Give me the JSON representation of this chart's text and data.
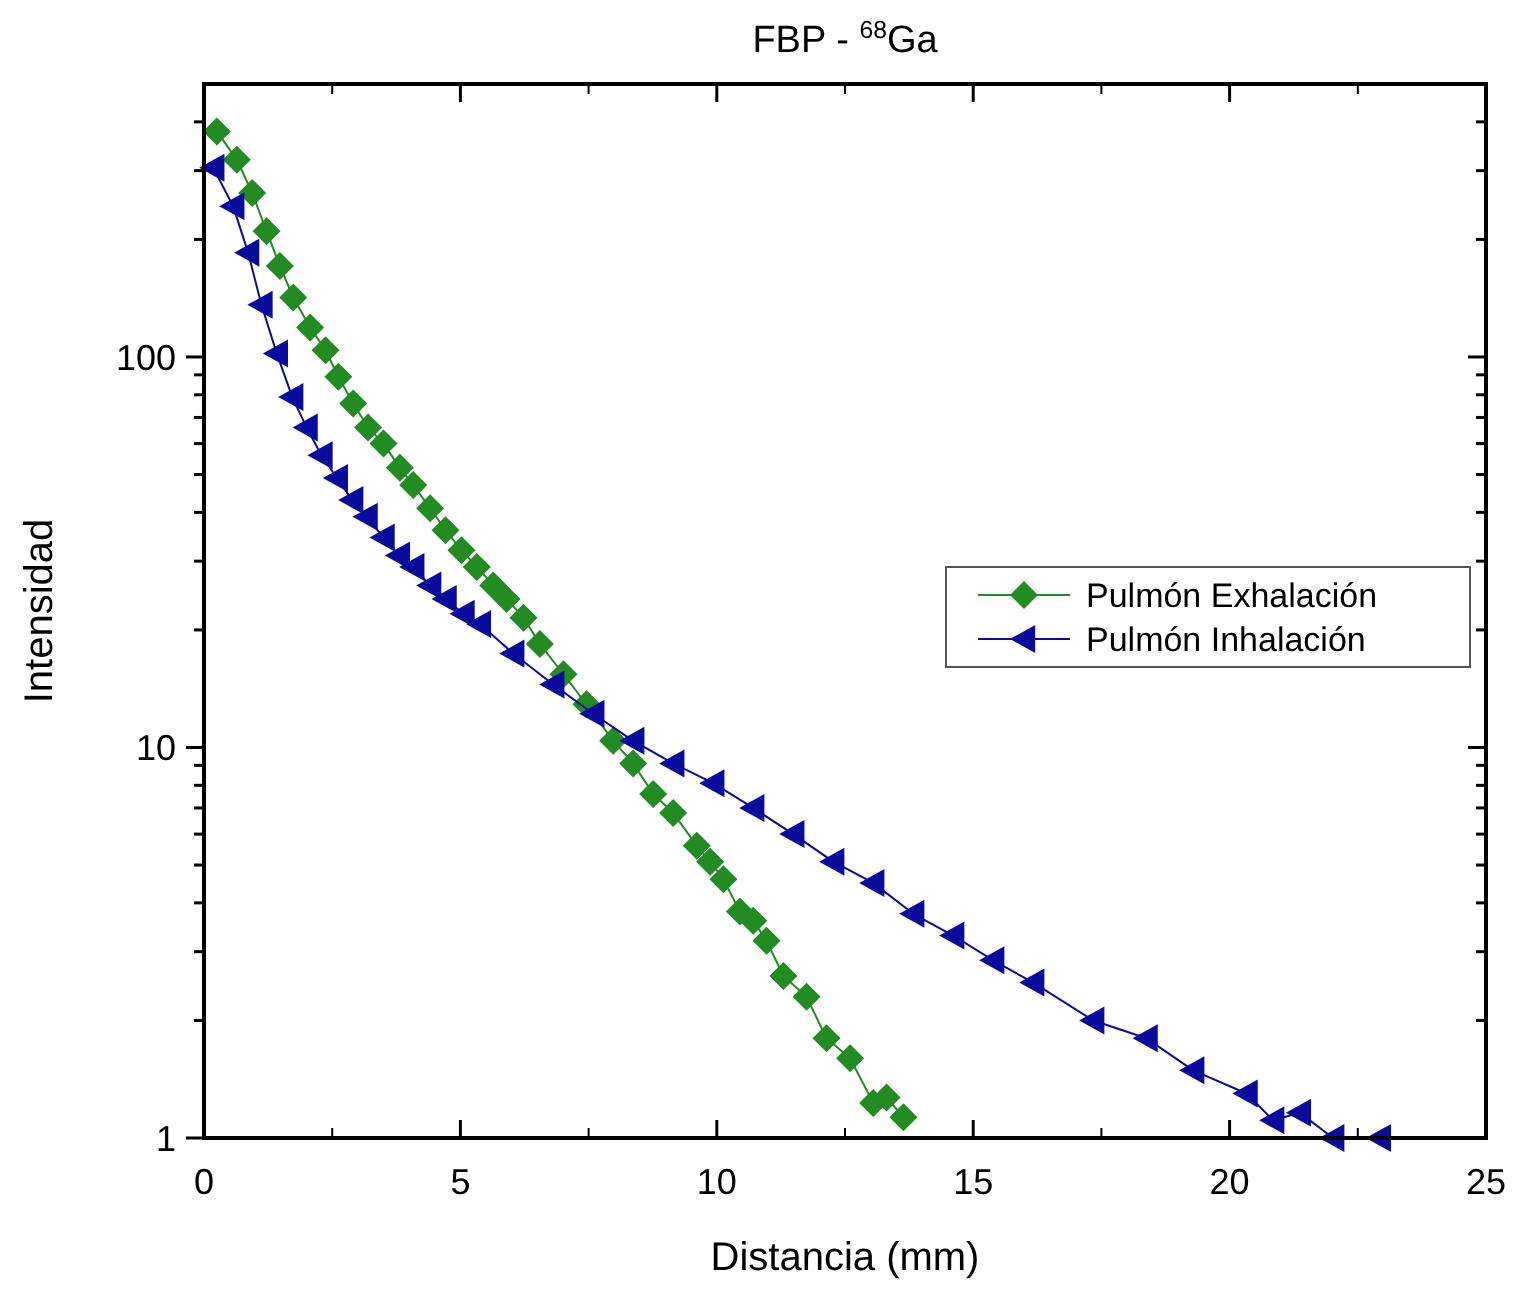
{
  "chart_data": {
    "type": "line",
    "title": "FBP - $^{68}$Ga",
    "xlabel": "Distancia (mm)",
    "ylabel": "Intensidad",
    "log": "y",
    "xlim": [
      0,
      25
    ],
    "xticks": [
      0,
      5,
      10,
      15,
      20,
      25
    ],
    "ylim": [
      1,
      500
    ],
    "yticks": [
      1,
      {
        "value": 2,
        "label": null
      },
      {
        "value": 3,
        "label": null
      },
      {
        "value": 4,
        "label": null
      },
      {
        "value": 5,
        "label": null
      },
      {
        "value": 6,
        "label": null
      },
      {
        "value": 7,
        "label": null
      },
      {
        "value": 8,
        "label": null
      },
      {
        "value": 9,
        "label": null
      },
      10,
      {
        "value": 20,
        "label": null
      },
      {
        "value": 30,
        "label": null
      },
      {
        "value": 40,
        "label": null
      },
      {
        "value": 50,
        "label": null
      },
      {
        "value": 60,
        "label": null
      },
      {
        "value": 70,
        "label": null
      },
      {
        "value": 80,
        "label": null
      },
      {
        "value": 90,
        "label": null
      },
      100,
      {
        "value": 200,
        "label": null
      },
      {
        "value": 300,
        "label": null
      },
      {
        "value": 400,
        "label": null
      }
    ],
    "legend": "right",
    "grid": false,
    "series": [
      {
        "name": "Pulmón Exhalación",
        "color": "#228b22",
        "marker": "diamond",
        "x": [
          0.25,
          0.64,
          0.94,
          1.22,
          1.48,
          1.74,
          2.07,
          2.37,
          2.62,
          2.91,
          3.2,
          3.5,
          3.82,
          4.08,
          4.41,
          4.71,
          5.02,
          5.32,
          5.64,
          5.9,
          6.23,
          6.55,
          7.01,
          7.46,
          7.98,
          8.37,
          8.76,
          9.15,
          9.61,
          9.87,
          10.13,
          10.45,
          10.71,
          10.97,
          11.3,
          11.75,
          12.14,
          12.6,
          13.05,
          13.31,
          13.64
        ],
        "values": [
          378,
          320,
          263,
          210,
          171,
          142,
          119,
          104,
          89,
          76,
          66,
          60,
          52,
          47,
          41,
          36,
          32,
          29,
          26,
          24,
          21.5,
          18.4,
          15.4,
          12.9,
          10.4,
          9.1,
          7.6,
          6.8,
          5.6,
          5.1,
          4.6,
          3.8,
          3.6,
          3.2,
          2.6,
          2.3,
          1.8,
          1.6,
          1.23,
          1.27,
          1.13
        ]
      },
      {
        "name": "Pulmón Inhalación",
        "color": "#0a0a9c",
        "marker": "triangle",
        "x": [
          0.18,
          0.57,
          0.86,
          1.12,
          1.42,
          1.72,
          2.0,
          2.29,
          2.59,
          2.89,
          3.17,
          3.5,
          3.8,
          4.08,
          4.41,
          4.71,
          5.06,
          5.38,
          6.03,
          6.81,
          7.59,
          8.37,
          9.15,
          9.93,
          10.71,
          11.49,
          12.27,
          13.05,
          13.83,
          14.61,
          15.39,
          16.17,
          17.34,
          18.38,
          19.29,
          20.33,
          20.85,
          21.37,
          22.02,
          22.93
        ],
        "values": [
          305,
          243,
          185,
          136,
          102,
          79,
          66,
          56,
          49,
          43,
          39,
          34.5,
          31,
          29,
          26,
          24,
          22,
          20.7,
          17.4,
          14.5,
          12.2,
          10.4,
          9.1,
          8.1,
          7.0,
          6.0,
          5.1,
          4.5,
          3.75,
          3.3,
          2.85,
          2.5,
          2.0,
          1.8,
          1.49,
          1.3,
          1.11,
          1.16,
          1.0,
          1.0
        ]
      }
    ]
  }
}
